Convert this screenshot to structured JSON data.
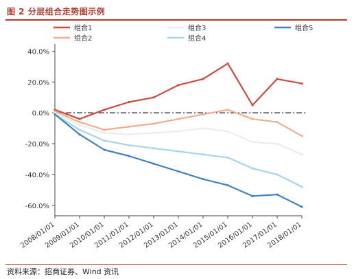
{
  "figure": {
    "title": "图 2  分层组合走势图示例",
    "source": "资料来源：招商证券、Wind 资讯"
  },
  "chart_data": {
    "type": "line",
    "x": [
      "2008/01/01",
      "2009/01/01",
      "2010/01/01",
      "2011/01/01",
      "2012/01/01",
      "2013/01/01",
      "2014/01/01",
      "2015/01/01",
      "2016/01/01",
      "2017/01/01",
      "2018/01/01"
    ],
    "ylim": [
      -0.65,
      0.42
    ],
    "yticks": [
      "40.0%",
      "20.0%",
      "0.0%",
      "-20.0%",
      "-40.0%",
      "-60.0%"
    ],
    "ytick_values": [
      0.4,
      0.2,
      0.0,
      -0.2,
      -0.4,
      -0.6
    ],
    "baseline": 0.0,
    "grid": false,
    "legend_placement": "top",
    "series": [
      {
        "name": "组合1",
        "color": "#cc4a3d",
        "values": [
          0.02,
          -0.04,
          0.02,
          0.07,
          0.1,
          0.18,
          0.22,
          0.32,
          0.05,
          0.22,
          0.19
        ]
      },
      {
        "name": "组合2",
        "color": "#f2ad8f",
        "values": [
          0.01,
          -0.06,
          -0.11,
          -0.09,
          -0.07,
          -0.04,
          -0.01,
          0.02,
          -0.04,
          -0.06,
          -0.15
        ]
      },
      {
        "name": "组合3",
        "color": "#ececec",
        "values": [
          0.0,
          -0.08,
          -0.13,
          -0.14,
          -0.13,
          -0.12,
          -0.1,
          -0.12,
          -0.19,
          -0.2,
          -0.27
        ]
      },
      {
        "name": "组合4",
        "color": "#a9d3ea",
        "values": [
          -0.01,
          -0.11,
          -0.18,
          -0.21,
          -0.23,
          -0.25,
          -0.27,
          -0.29,
          -0.36,
          -0.4,
          -0.48
        ]
      },
      {
        "name": "组合5",
        "color": "#3f84c0",
        "values": [
          -0.01,
          -0.14,
          -0.24,
          -0.28,
          -0.33,
          -0.38,
          -0.43,
          -0.47,
          -0.54,
          -0.53,
          -0.61
        ]
      }
    ]
  }
}
